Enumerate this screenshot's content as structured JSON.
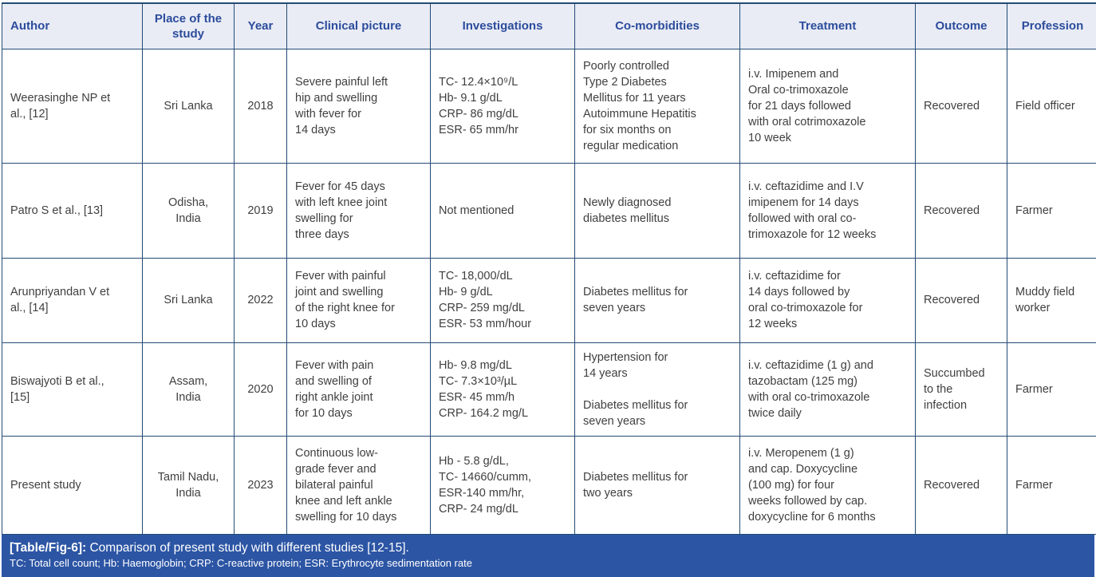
{
  "header": {
    "columns": [
      "Author",
      "Place of the study",
      "Year",
      "Clinical picture",
      "Investigations",
      "Co-morbidities",
      "Treatment",
      "Outcome",
      "Profession"
    ]
  },
  "rows": [
    {
      "author": "Weerasinghe NP et\nal., [12]",
      "place": "Sri Lanka",
      "year": "2018",
      "clinical": "Severe painful left\nhip and swelling\nwith fever for\n14 days",
      "investigations": "TC- 12.4×10⁹/L\nHb- 9.1 g/dL\nCRP- 86 mg/dL\nESR- 65 mm/hr",
      "comorbidities": "Poorly controlled\nType 2 Diabetes\nMellitus for 11 years\nAutoimmune Hepatitis\nfor six months on\nregular medication",
      "treatment": "i.v. Imipenem and\nOral co-trimoxazole\nfor 21 days followed\nwith oral cotrimoxazole\n10 week",
      "outcome": "Recovered",
      "profession": "Field officer"
    },
    {
      "author": "Patro S et al., [13]",
      "place": "Odisha,\nIndia",
      "year": "2019",
      "clinical": "Fever for 45 days\nwith left knee joint\nswelling for\nthree days",
      "investigations": "Not mentioned",
      "comorbidities": "Newly diagnosed\ndiabetes mellitus",
      "treatment": "i.v. ceftazidime and I.V\nimipenem for 14 days\nfollowed with oral co-\ntrimoxazole for 12 weeks",
      "outcome": "Recovered",
      "profession": "Farmer"
    },
    {
      "author": "Arunpriyandan V et\nal., [14]",
      "place": "Sri Lanka",
      "year": "2022",
      "clinical": "Fever with painful\njoint and swelling\nof the right knee for\n10 days",
      "investigations": "TC- 18,000/dL\nHb- 9 g/dL\nCRP- 259 mg/dL\nESR- 53 mm/hour",
      "comorbidities": "Diabetes mellitus for\nseven years",
      "treatment": "i.v. ceftazidime for\n14 days followed by\noral co-trimoxazole for\n12 weeks",
      "outcome": "Recovered",
      "profession": "Muddy field\nworker"
    },
    {
      "author": "Biswajyoti B et al.,\n[15]",
      "place": "Assam,\nIndia",
      "year": "2020",
      "clinical": "Fever with pain\nand swelling of\nright ankle joint\nfor 10 days",
      "investigations": "Hb- 9.8 mg/dL\nTC- 7.3×10³/µL\nESR- 45 mm/h\nCRP- 164.2 mg/L",
      "comorbidities": "Hypertension for\n14 years\n\nDiabetes mellitus for\nseven years",
      "treatment": "i.v. ceftazidime (1 g) and\ntazobactam (125 mg)\nwith oral co-trimoxazole\ntwice daily",
      "outcome": "Succumbed\nto the\ninfection",
      "profession": "Farmer"
    },
    {
      "author": "Present study",
      "place": "Tamil Nadu,\nIndia",
      "year": "2023",
      "clinical": "Continuous low-\ngrade fever and\nbilateral painful\nknee and left ankle\nswelling for 10 days",
      "investigations": "Hb - 5.8 g/dL,\nTC- 14660/cumm,\nESR-140 mm/hr,\nCRP- 24 mg/dL",
      "comorbidities": "Diabetes mellitus for\ntwo years",
      "treatment": "i.v. Meropenem (1 g)\nand cap. Doxycycline\n(100 mg) for four\nweeks followed by cap.\ndoxycycline for 6 months",
      "outcome": "Recovered",
      "profession": "Farmer"
    }
  ],
  "footer": {
    "label": "[Table/Fig-6]:",
    "caption": " Comparison of present study with different studies [12-15].",
    "abbreviations": "TC: Total cell count; Hb: Haemoglobin; CRP: C-reactive protein; ESR: Erythrocyte sedimentation rate"
  },
  "colors": {
    "header_bg": "#e9ecf5",
    "header_text": "#2c4c9c",
    "border": "#234b74",
    "footer_bg": "#2c55a4",
    "body_text": "#3f3f3f"
  }
}
